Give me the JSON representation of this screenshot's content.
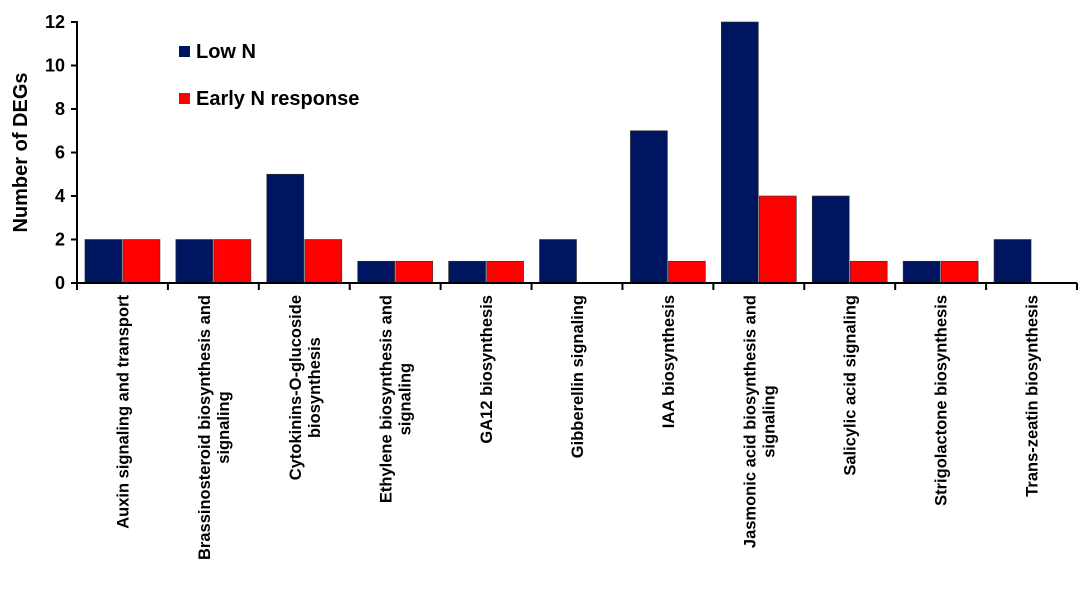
{
  "chart_data": {
    "type": "bar",
    "title": "",
    "xlabel": "",
    "ylabel": "Number of DEGs",
    "ylim": [
      0,
      12
    ],
    "yticks": [
      0,
      2,
      4,
      6,
      8,
      10,
      12
    ],
    "grid": false,
    "legend_position": "top-left",
    "categories": [
      [
        "Auxin signaling and transport"
      ],
      [
        "Brassinosteroid biosynthesis and",
        "signaling"
      ],
      [
        "Cytokinins-O-glucoside",
        "biosynthesis"
      ],
      [
        "Ethylene biosynthesis and",
        "signaling"
      ],
      [
        "GA12 biosynthesis"
      ],
      [
        "Gibberellin signaling"
      ],
      [
        "IAA biosynthesis"
      ],
      [
        "Jasmonic acid biosynthesis and",
        "signaling"
      ],
      [
        "Salicylic acid signaling"
      ],
      [
        "Strigolactone biosynthesis"
      ],
      [
        "Trans-zeatin biosynthesis"
      ]
    ],
    "series": [
      {
        "name": "Low N",
        "color": "#001560",
        "values": [
          2,
          2,
          5,
          1,
          1,
          2,
          7,
          12,
          4,
          1,
          2
        ]
      },
      {
        "name": "Early N response",
        "color": "#ff0000",
        "values": [
          2,
          2,
          2,
          1,
          1,
          0,
          1,
          4,
          1,
          1,
          0
        ]
      }
    ]
  }
}
